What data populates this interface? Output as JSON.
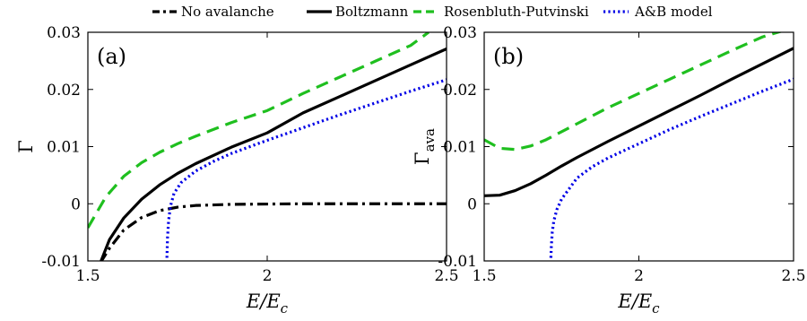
{
  "legend": {
    "location": "top-center, above panels",
    "entries": [
      {
        "label": "No avalanche",
        "color": "#000000",
        "style": "dashdot"
      },
      {
        "label": "Boltzmann",
        "color": "#000000",
        "style": "solid"
      },
      {
        "label": "Rosenbluth-Putvinski",
        "color": "#1fbf1f",
        "style": "dashed"
      },
      {
        "label": "A&B model",
        "color": "#0000e6",
        "style": "dotted"
      }
    ]
  },
  "chart_data": [
    {
      "type": "line",
      "panel_label": "(a)",
      "xlabel": "E/E_c",
      "xlabel_main": "E/E",
      "xlabel_sub": "c",
      "ylabel": "Γ",
      "ylabel_main": "Γ",
      "ylabel_sub": "",
      "xlim": [
        1.5,
        2.5
      ],
      "ylim": [
        -0.01,
        0.03
      ],
      "xticks": [
        1.5,
        2,
        2.5
      ],
      "xtick_labels": [
        "1.5",
        "2",
        "2.5"
      ],
      "yticks": [
        -0.01,
        0,
        0.01,
        0.02,
        0.03
      ],
      "ytick_labels": [
        "-0.01",
        "0",
        "0.01",
        "0.02",
        "0.03"
      ],
      "grid": false,
      "series": [
        {
          "name": "No avalanche",
          "color": "#000000",
          "style": "dashdot",
          "x": [
            1.535,
            1.56,
            1.6,
            1.65,
            1.7,
            1.75,
            1.8,
            1.9,
            2.0,
            2.1,
            2.2,
            2.3,
            2.4,
            2.5
          ],
          "y": [
            -0.0103,
            -0.0078,
            -0.0046,
            -0.0024,
            -0.0012,
            -0.0006,
            -0.0003,
            -0.0001,
            -5e-05,
            0.0,
            0.0,
            0.0,
            0.0,
            0.0
          ]
        },
        {
          "name": "Boltzmann",
          "color": "#000000",
          "style": "solid",
          "x": [
            1.535,
            1.56,
            1.6,
            1.65,
            1.7,
            1.75,
            1.8,
            1.9,
            2.0,
            2.1,
            2.2,
            2.3,
            2.4,
            2.5
          ],
          "y": [
            -0.0103,
            -0.0063,
            -0.0025,
            0.0008,
            0.0033,
            0.0053,
            0.007,
            0.0099,
            0.0124,
            0.0159,
            0.0187,
            0.0215,
            0.0243,
            0.0271
          ]
        },
        {
          "name": "Rosenbluth-Putvinski",
          "color": "#1fbf1f",
          "style": "dashed",
          "x": [
            1.5,
            1.55,
            1.6,
            1.65,
            1.7,
            1.75,
            1.8,
            1.9,
            2.0,
            2.1,
            2.2,
            2.3,
            2.4,
            2.45
          ],
          "y": [
            -0.0042,
            0.0012,
            0.0048,
            0.0072,
            0.009,
            0.0105,
            0.0118,
            0.0142,
            0.0163,
            0.0193,
            0.0221,
            0.0249,
            0.0277,
            0.03
          ]
        },
        {
          "name": "A&B model",
          "color": "#0000e6",
          "style": "dotted",
          "x": [
            1.72,
            1.722,
            1.725,
            1.73,
            1.74,
            1.76,
            1.8,
            1.85,
            1.9,
            2.0,
            2.1,
            2.2,
            2.3,
            2.4,
            2.5
          ],
          "y": [
            -0.0103,
            -0.006,
            -0.003,
            -0.0005,
            0.0018,
            0.0037,
            0.0057,
            0.0074,
            0.0088,
            0.0111,
            0.0133,
            0.0155,
            0.0176,
            0.0197,
            0.0217
          ]
        }
      ]
    },
    {
      "type": "line",
      "panel_label": "(b)",
      "xlabel": "E/E_c",
      "xlabel_main": "E/E",
      "xlabel_sub": "c",
      "ylabel": "Γ_ava",
      "ylabel_main": "Γ",
      "ylabel_sub": "ava",
      "xlim": [
        1.5,
        2.5
      ],
      "ylim": [
        -0.01,
        0.03
      ],
      "xticks": [
        1.5,
        2,
        2.5
      ],
      "xtick_labels": [
        "1.5",
        "2",
        "2.5"
      ],
      "yticks": [
        -0.01,
        0,
        0.01,
        0.02,
        0.03
      ],
      "ytick_labels": [
        "-0.01",
        "0",
        "0.01",
        "0.02",
        "0.03"
      ],
      "grid": false,
      "series": [
        {
          "name": "Boltzmann",
          "color": "#000000",
          "style": "solid",
          "x": [
            1.5,
            1.55,
            1.6,
            1.65,
            1.7,
            1.75,
            1.8,
            1.9,
            2.0,
            2.1,
            2.2,
            2.3,
            2.4,
            2.5
          ],
          "y": [
            0.0014,
            0.0015,
            0.0023,
            0.0035,
            0.005,
            0.0066,
            0.0081,
            0.0109,
            0.0136,
            0.0163,
            0.019,
            0.0218,
            0.0245,
            0.0272
          ]
        },
        {
          "name": "Rosenbluth-Putvinski",
          "color": "#1fbf1f",
          "style": "dashed",
          "x": [
            1.5,
            1.55,
            1.6,
            1.65,
            1.7,
            1.75,
            1.8,
            1.9,
            2.0,
            2.1,
            2.2,
            2.3,
            2.4,
            2.48
          ],
          "y": [
            0.0112,
            0.0097,
            0.0095,
            0.0101,
            0.0112,
            0.0126,
            0.014,
            0.0168,
            0.0193,
            0.0218,
            0.0243,
            0.0268,
            0.0292,
            0.0305
          ]
        },
        {
          "name": "A&B model",
          "color": "#0000e6",
          "style": "dotted",
          "x": [
            1.715,
            1.717,
            1.72,
            1.725,
            1.735,
            1.75,
            1.8,
            1.85,
            1.9,
            2.0,
            2.1,
            2.2,
            2.3,
            2.4,
            2.5
          ],
          "y": [
            -0.0103,
            -0.0075,
            -0.005,
            -0.003,
            -0.001,
            0.0008,
            0.0045,
            0.0065,
            0.008,
            0.0105,
            0.013,
            0.0153,
            0.0175,
            0.0197,
            0.0218
          ]
        }
      ]
    }
  ]
}
